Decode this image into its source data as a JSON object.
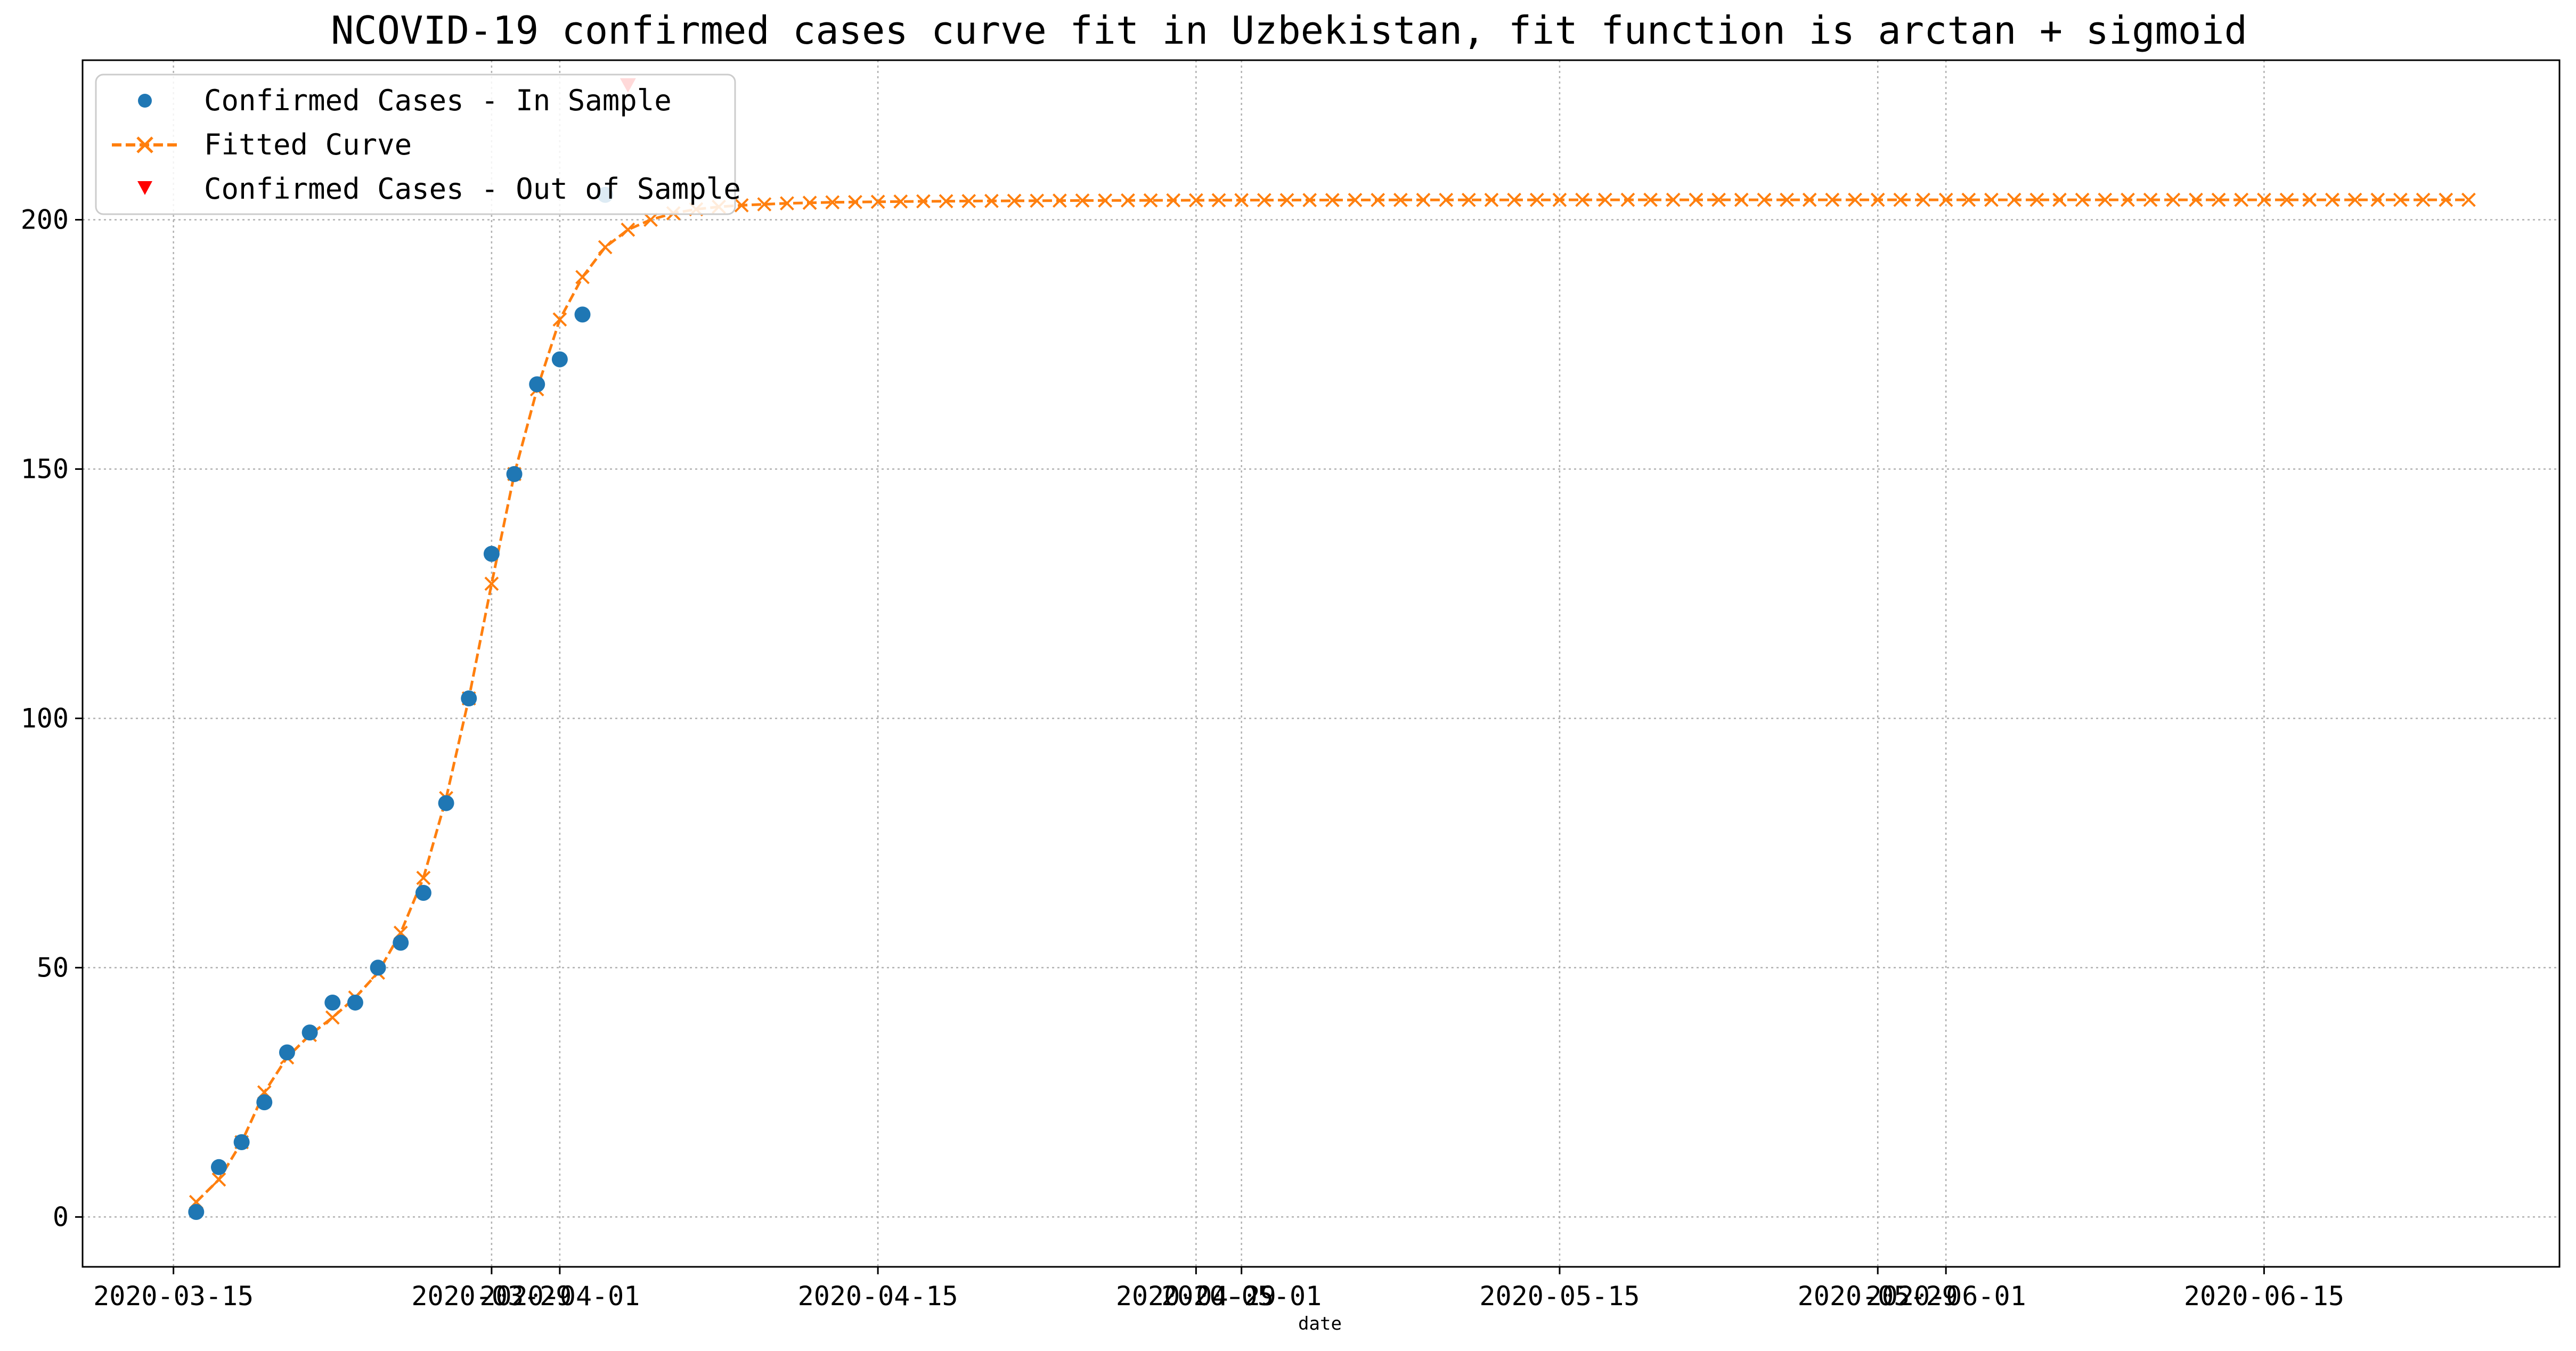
{
  "chart_data": {
    "type": "line",
    "title": "NCOVID-19 confirmed cases curve fit in Uzbekistan, fit function is arctan + sigmoid",
    "xlabel": "date",
    "ylabel": "",
    "xlim": [
      "2020-03-11",
      "2020-06-28"
    ],
    "ylim": [
      -10,
      232
    ],
    "grid": true,
    "legend_position": "top-left",
    "x_ticks": [
      {
        "date": "2020-03-15",
        "label": "2020-03-15"
      },
      {
        "date": "2020-03-29",
        "label": "2020-03-29"
      },
      {
        "date": "2020-04-01",
        "label": "2020-04-01"
      },
      {
        "date": "2020-04-15",
        "label": "2020-04-15"
      },
      {
        "date": "2020-04-29",
        "label": "2020-04-29"
      },
      {
        "date": "2020-05-01",
        "label": "2020-05-01"
      },
      {
        "date": "2020-05-15",
        "label": "2020-05-15"
      },
      {
        "date": "2020-05-29",
        "label": "2020-05-29"
      },
      {
        "date": "2020-06-01",
        "label": "2020-06-01"
      },
      {
        "date": "2020-06-15",
        "label": "2020-06-15"
      }
    ],
    "y_ticks": [
      0,
      50,
      100,
      150,
      200
    ],
    "series": [
      {
        "name": "Confirmed Cases - In Sample",
        "style": "scatter-circle",
        "color": "#1f77b4",
        "x": [
          "2020-03-16",
          "2020-03-17",
          "2020-03-18",
          "2020-03-19",
          "2020-03-20",
          "2020-03-21",
          "2020-03-22",
          "2020-03-23",
          "2020-03-24",
          "2020-03-25",
          "2020-03-26",
          "2020-03-27",
          "2020-03-28",
          "2020-03-29",
          "2020-03-30",
          "2020-03-31",
          "2020-04-01",
          "2020-04-02",
          "2020-04-03"
        ],
        "y": [
          1,
          10,
          15,
          23,
          33,
          37,
          43,
          43,
          50,
          55,
          65,
          83,
          104,
          133,
          149,
          167,
          172,
          181,
          205
        ]
      },
      {
        "name": "Fitted Curve",
        "style": "dashed-line-x-marker",
        "color": "#ff7f0e",
        "start_date": "2020-03-16",
        "y": [
          3,
          7.5,
          15,
          25,
          32,
          36.5,
          40,
          44,
          49,
          57,
          68,
          84,
          104,
          127,
          149,
          166,
          180,
          188.5,
          194.5,
          198,
          200,
          201.3,
          202.1,
          202.6,
          202.9,
          203.1,
          203.3,
          203.4,
          203.5,
          203.55,
          203.6,
          203.65,
          203.7,
          203.72,
          203.75,
          203.77,
          203.8,
          203.82,
          203.84,
          203.86,
          203.87,
          203.88,
          203.89,
          203.9,
          203.91,
          203.92,
          203.93,
          203.94,
          203.94,
          203.95,
          203.95,
          203.96,
          203.96,
          203.97,
          203.97,
          203.98,
          203.98,
          203.98,
          203.99,
          203.99,
          203.99,
          204,
          204,
          204,
          204,
          204,
          204,
          204,
          204,
          204,
          204,
          204,
          204,
          204,
          204,
          204,
          204,
          204,
          204,
          204,
          204,
          204,
          204,
          204,
          204,
          204,
          204,
          204,
          204,
          204,
          204,
          204,
          204,
          204,
          204,
          204,
          204,
          204,
          204,
          204,
          204
        ]
      },
      {
        "name": "Confirmed Cases - Out of Sample",
        "style": "scatter-triangle-down",
        "color": "#ff0000",
        "x": [
          "2020-04-04"
        ],
        "y": [
          227
        ]
      }
    ]
  }
}
